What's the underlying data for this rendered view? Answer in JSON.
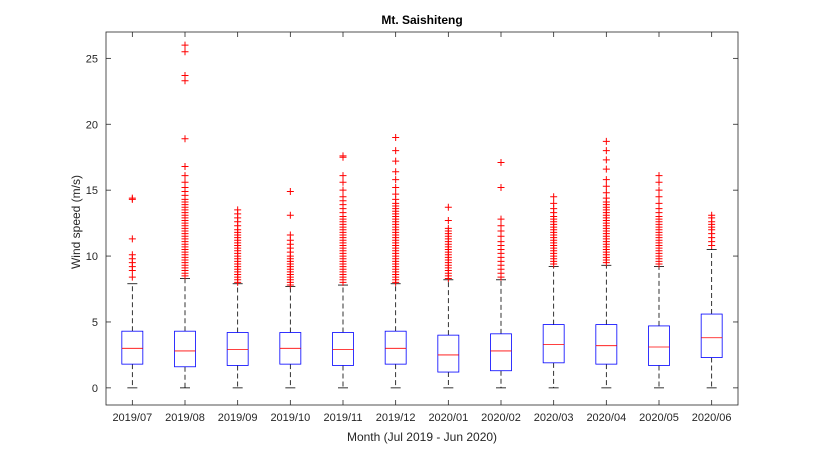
{
  "chart_data": {
    "type": "boxplot",
    "title": "Mt. Saishiteng",
    "xlabel": "Month (Jul 2019 - Jun 2020)",
    "ylabel": "Wind speed (m/s)",
    "ylim": [
      -1.3,
      27
    ],
    "yticks": [
      0,
      5,
      10,
      15,
      20,
      25
    ],
    "colors": {
      "box": "#0000ff",
      "median": "#ff0000",
      "whisker": "#000000",
      "outlier": "#ff0000",
      "axis": "#262626"
    },
    "categories": [
      "2019/07",
      "2019/08",
      "2019/09",
      "2019/10",
      "2019/11",
      "2019/12",
      "2020/01",
      "2020/02",
      "2020/03",
      "2020/04",
      "2020/05",
      "2020/06"
    ],
    "boxes": [
      {
        "label": "2019/07",
        "min": 0,
        "q1": 1.8,
        "median": 3.0,
        "q3": 4.3,
        "max": 7.9,
        "outliers": [
          8.4,
          8.9,
          9.2,
          9.5,
          9.8,
          10.1,
          11.3,
          14.3,
          14.4
        ]
      },
      {
        "label": "2019/08",
        "min": 0,
        "q1": 1.6,
        "median": 2.8,
        "q3": 4.3,
        "max": 8.3,
        "outliers": [
          8.5,
          8.7,
          8.9,
          9.1,
          9.3,
          9.5,
          9.7,
          9.9,
          10.1,
          10.3,
          10.5,
          10.7,
          10.9,
          11.1,
          11.3,
          11.5,
          11.7,
          11.9,
          12.1,
          12.3,
          12.5,
          12.7,
          12.9,
          13.1,
          13.3,
          13.5,
          13.7,
          13.9,
          14.1,
          14.3,
          14.6,
          14.9,
          15.2,
          15.6,
          16.1,
          16.8,
          18.9,
          23.3,
          23.7,
          25.5,
          26.0
        ]
      },
      {
        "label": "2019/09",
        "min": 0,
        "q1": 1.7,
        "median": 2.9,
        "q3": 4.2,
        "max": 7.9,
        "outliers": [
          8.0,
          8.2,
          8.4,
          8.6,
          8.8,
          9.0,
          9.2,
          9.4,
          9.6,
          9.8,
          10.0,
          10.2,
          10.4,
          10.6,
          10.8,
          11.0,
          11.2,
          11.4,
          11.6,
          11.8,
          12.0,
          12.3,
          12.6,
          12.9,
          13.2,
          13.5
        ]
      },
      {
        "label": "2019/10",
        "min": 0,
        "q1": 1.8,
        "median": 3.0,
        "q3": 4.2,
        "max": 7.7,
        "outliers": [
          7.8,
          8.0,
          8.2,
          8.4,
          8.6,
          8.8,
          9.0,
          9.2,
          9.4,
          9.6,
          9.8,
          10.0,
          10.3,
          10.6,
          10.9,
          11.2,
          11.6,
          13.1,
          14.9
        ]
      },
      {
        "label": "2019/11",
        "min": 0,
        "q1": 1.7,
        "median": 2.9,
        "q3": 4.2,
        "max": 7.8,
        "outliers": [
          8.0,
          8.2,
          8.4,
          8.6,
          8.8,
          9.0,
          9.2,
          9.4,
          9.6,
          9.8,
          10.0,
          10.2,
          10.4,
          10.6,
          10.8,
          11.0,
          11.2,
          11.4,
          11.6,
          11.8,
          12.0,
          12.2,
          12.4,
          12.6,
          12.8,
          13.0,
          13.3,
          13.6,
          13.9,
          14.2,
          14.5,
          15.0,
          15.6,
          16.1,
          17.5,
          17.6
        ]
      },
      {
        "label": "2019/12",
        "min": 0,
        "q1": 1.8,
        "median": 3.0,
        "q3": 4.3,
        "max": 7.9,
        "outliers": [
          8.0,
          8.2,
          8.4,
          8.6,
          8.8,
          9.0,
          9.2,
          9.4,
          9.6,
          9.8,
          10.0,
          10.2,
          10.4,
          10.6,
          10.8,
          11.0,
          11.2,
          11.4,
          11.6,
          11.8,
          12.0,
          12.2,
          12.4,
          12.6,
          12.8,
          13.0,
          13.2,
          13.4,
          13.6,
          13.8,
          14.0,
          14.3,
          14.7,
          15.2,
          15.8,
          16.4,
          17.2,
          18.0,
          19.0
        ]
      },
      {
        "label": "2020/01",
        "min": 0,
        "q1": 1.2,
        "median": 2.5,
        "q3": 4.0,
        "max": 8.2,
        "outliers": [
          8.3,
          8.5,
          8.7,
          8.9,
          9.1,
          9.3,
          9.5,
          9.7,
          9.9,
          10.1,
          10.3,
          10.5,
          10.7,
          10.9,
          11.1,
          11.3,
          11.5,
          11.7,
          11.9,
          12.1,
          12.7,
          13.7
        ]
      },
      {
        "label": "2020/02",
        "min": 0,
        "q1": 1.3,
        "median": 2.8,
        "q3": 4.1,
        "max": 8.2,
        "outliers": [
          8.4,
          8.7,
          9.0,
          9.3,
          9.6,
          9.9,
          10.2,
          10.5,
          10.8,
          11.1,
          11.5,
          11.9,
          12.3,
          12.8,
          15.2,
          17.1
        ]
      },
      {
        "label": "2020/03",
        "min": 0,
        "q1": 1.9,
        "median": 3.3,
        "q3": 4.8,
        "max": 9.2,
        "outliers": [
          9.4,
          9.6,
          9.8,
          10.0,
          10.2,
          10.4,
          10.6,
          10.8,
          11.0,
          11.2,
          11.4,
          11.6,
          11.8,
          12.0,
          12.2,
          12.4,
          12.6,
          12.8,
          13.0,
          13.3,
          13.6,
          14.0,
          14.5
        ]
      },
      {
        "label": "2020/04",
        "min": 0,
        "q1": 1.8,
        "median": 3.2,
        "q3": 4.8,
        "max": 9.3,
        "outliers": [
          9.5,
          9.7,
          9.9,
          10.1,
          10.3,
          10.5,
          10.7,
          10.9,
          11.1,
          11.3,
          11.5,
          11.7,
          11.9,
          12.1,
          12.3,
          12.5,
          12.7,
          12.9,
          13.1,
          13.3,
          13.5,
          13.7,
          13.9,
          14.1,
          14.4,
          14.8,
          15.3,
          15.8,
          16.6,
          17.3,
          18.0,
          18.7
        ]
      },
      {
        "label": "2020/05",
        "min": 0,
        "q1": 1.7,
        "median": 3.1,
        "q3": 4.7,
        "max": 9.2,
        "outliers": [
          9.4,
          9.6,
          9.8,
          10.0,
          10.2,
          10.4,
          10.6,
          10.8,
          11.0,
          11.2,
          11.4,
          11.6,
          11.8,
          12.0,
          12.2,
          12.4,
          12.6,
          12.8,
          13.0,
          13.3,
          13.6,
          14.0,
          14.5,
          15.0,
          15.6,
          16.1
        ]
      },
      {
        "label": "2020/06",
        "min": 0,
        "q1": 2.3,
        "median": 3.8,
        "q3": 5.6,
        "max": 10.5,
        "outliers": [
          10.8,
          11.1,
          11.4,
          11.7,
          12.0,
          12.2,
          12.4,
          12.6,
          12.9,
          13.1
        ]
      }
    ]
  }
}
